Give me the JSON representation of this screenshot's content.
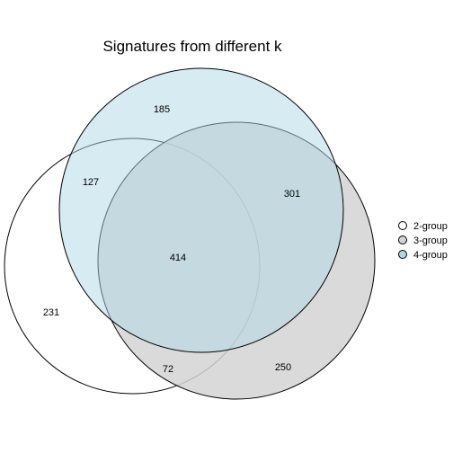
{
  "chart_data": {
    "type": "venn",
    "title": "Signatures from different k",
    "sets": [
      {
        "name": "2-group",
        "color": "#ffffff"
      },
      {
        "name": "3-group",
        "color": "#d3d3d3"
      },
      {
        "name": "4-group",
        "color": "#add8e6"
      }
    ],
    "regions": [
      {
        "id": "only_2",
        "sets": [
          "2-group"
        ],
        "value": 231
      },
      {
        "id": "only_3",
        "sets": [
          "3-group"
        ],
        "value": 250
      },
      {
        "id": "only_4",
        "sets": [
          "4-group"
        ],
        "value": 185
      },
      {
        "id": "2_and_3",
        "sets": [
          "2-group",
          "3-group"
        ],
        "value": 72
      },
      {
        "id": "2_and_4",
        "sets": [
          "2-group",
          "4-group"
        ],
        "value": 127
      },
      {
        "id": "3_and_4",
        "sets": [
          "3-group",
          "4-group"
        ],
        "value": 301
      },
      {
        "id": "all_three",
        "sets": [
          "2-group",
          "3-group",
          "4-group"
        ],
        "value": 414
      }
    ],
    "legend_position": "right"
  }
}
